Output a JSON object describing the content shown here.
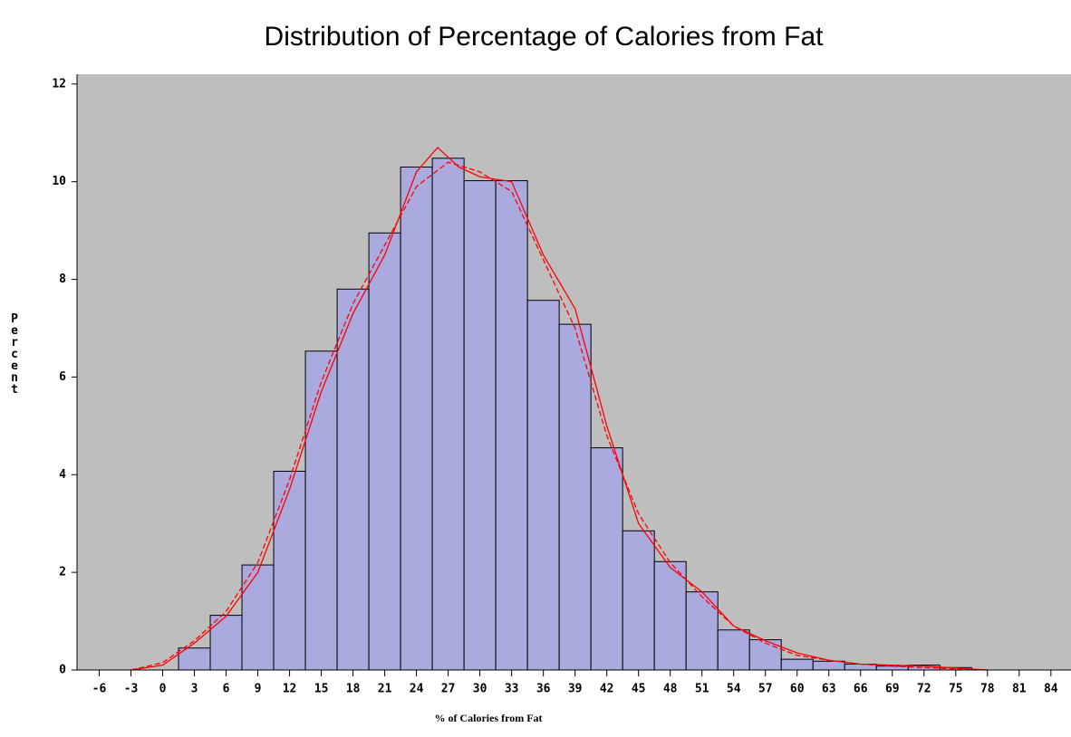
{
  "chart_data": {
    "type": "histogram",
    "title": "Distribution of Percentage of Calories from Fat",
    "x_label": "% of Calories from Fat",
    "y_label": "Percent",
    "bins": [
      1.5,
      4.5,
      7.5,
      10.5,
      13.5,
      16.5,
      19.5,
      22.5,
      25.5,
      28.5,
      31.5,
      34.5,
      37.5,
      40.5,
      43.5,
      46.5,
      49.5,
      52.5,
      55.5,
      58.5,
      61.5,
      64.5,
      67.5,
      70.5,
      73.5,
      76.5
    ],
    "values": [
      0.45,
      1.12,
      2.15,
      4.07,
      6.53,
      7.8,
      8.95,
      10.3,
      10.48,
      10.02,
      10.02,
      7.57,
      7.08,
      4.55,
      2.85,
      2.22,
      1.6,
      0.82,
      0.62,
      0.22,
      0.18,
      0.12,
      0.08,
      0.1,
      0.05
    ],
    "color": "#aaaadf",
    "background": "#bebebe",
    "curves": [
      {
        "color": "#ff0000",
        "dash": "none",
        "x": [
          -3,
          0,
          3,
          6,
          9,
          12,
          15,
          18,
          21,
          24,
          26,
          28,
          30,
          33,
          36,
          39,
          42,
          45,
          48,
          51,
          54,
          57,
          60,
          63,
          66,
          69,
          72,
          75,
          78
        ],
        "values": [
          0,
          0.1,
          0.55,
          1.1,
          2.0,
          3.7,
          5.7,
          7.3,
          8.5,
          10.2,
          10.7,
          10.3,
          10.1,
          10.0,
          8.5,
          7.4,
          5.0,
          3.0,
          2.1,
          1.6,
          0.9,
          0.6,
          0.35,
          0.2,
          0.12,
          0.1,
          0.08,
          0.04,
          0
        ]
      },
      {
        "color": "#ff0000",
        "dash": "6 3",
        "x": [
          -3,
          0,
          3,
          6,
          9,
          12,
          15,
          18,
          21,
          24,
          27,
          30,
          33,
          36,
          39,
          42,
          45,
          48,
          51,
          54,
          57,
          60,
          63,
          66,
          69,
          72,
          75,
          78
        ],
        "values": [
          0,
          0.15,
          0.6,
          1.2,
          2.2,
          3.9,
          5.9,
          7.5,
          8.7,
          9.9,
          10.4,
          10.2,
          9.8,
          8.4,
          7.0,
          4.8,
          3.2,
          2.2,
          1.5,
          0.9,
          0.55,
          0.3,
          0.2,
          0.12,
          0.08,
          0.05,
          0.02,
          0
        ]
      }
    ],
    "xlim": [
      -8.1,
      85.9
    ],
    "ylim": [
      0,
      12.2
    ],
    "xticks": [
      -6,
      -3,
      0,
      3,
      6,
      9,
      12,
      15,
      18,
      21,
      24,
      27,
      30,
      33,
      36,
      39,
      42,
      45,
      48,
      51,
      54,
      57,
      60,
      63,
      66,
      69,
      72,
      75,
      78,
      81,
      84
    ],
    "yticks": [
      0,
      2,
      4,
      6,
      8,
      10,
      12
    ]
  }
}
